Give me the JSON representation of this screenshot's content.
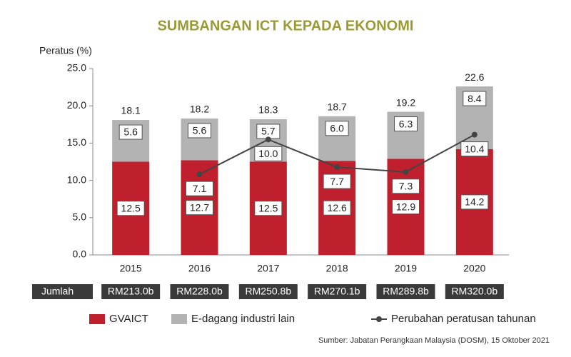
{
  "chart_data": {
    "type": "bar",
    "stacked": true,
    "title": "SUMBANGAN ICT KEPADA EKONOMI",
    "y_label": "Peratus (%)",
    "categories": [
      "2015",
      "2016",
      "2017",
      "2018",
      "2019",
      "2020"
    ],
    "ylim": [
      0,
      25
    ],
    "yticks": [
      {
        "value": 0,
        "label": "0.0"
      },
      {
        "value": 5,
        "label": "5.0"
      },
      {
        "value": 10,
        "label": "10.0"
      },
      {
        "value": 15,
        "label": "15.0"
      },
      {
        "value": 20,
        "label": "20.0"
      },
      {
        "value": 25,
        "label": "25.0"
      }
    ],
    "y2lim": [
      0.4,
      15.9
    ],
    "series": [
      {
        "name": "GVAICT",
        "color": "#c0202e",
        "type": "bar",
        "values": [
          12.5,
          12.7,
          12.5,
          12.6,
          12.9,
          14.2
        ]
      },
      {
        "name": "E-dagang industri lain",
        "color": "#b3b3b3",
        "type": "bar",
        "values": [
          5.6,
          5.6,
          5.7,
          6.0,
          6.3,
          8.4
        ],
        "value_labels": [
          "5.6",
          "5.6",
          "5.7",
          "6.0",
          "6.3",
          "8.4"
        ]
      },
      {
        "name": "Perubahan peratusan tahunan",
        "color": "#444444",
        "type": "line",
        "axis": "y2",
        "values": [
          null,
          7.1,
          10.0,
          7.7,
          7.3,
          10.4
        ],
        "value_labels": [
          null,
          "7.1",
          "10.0",
          "7.7",
          "7.3",
          "10.4"
        ]
      }
    ],
    "totals": [
      18.1,
      18.2,
      18.3,
      18.7,
      19.2,
      22.6
    ],
    "summary_row": {
      "label": "Jumlah",
      "values": [
        "RM213.0b",
        "RM228.0b",
        "RM250.8b",
        "RM270.1b",
        "RM289.8b",
        "RM320.0b"
      ]
    },
    "source": "Sumber: Jabatan Perangkaan Malaysia (DOSM), 15 Oktober 2021"
  }
}
